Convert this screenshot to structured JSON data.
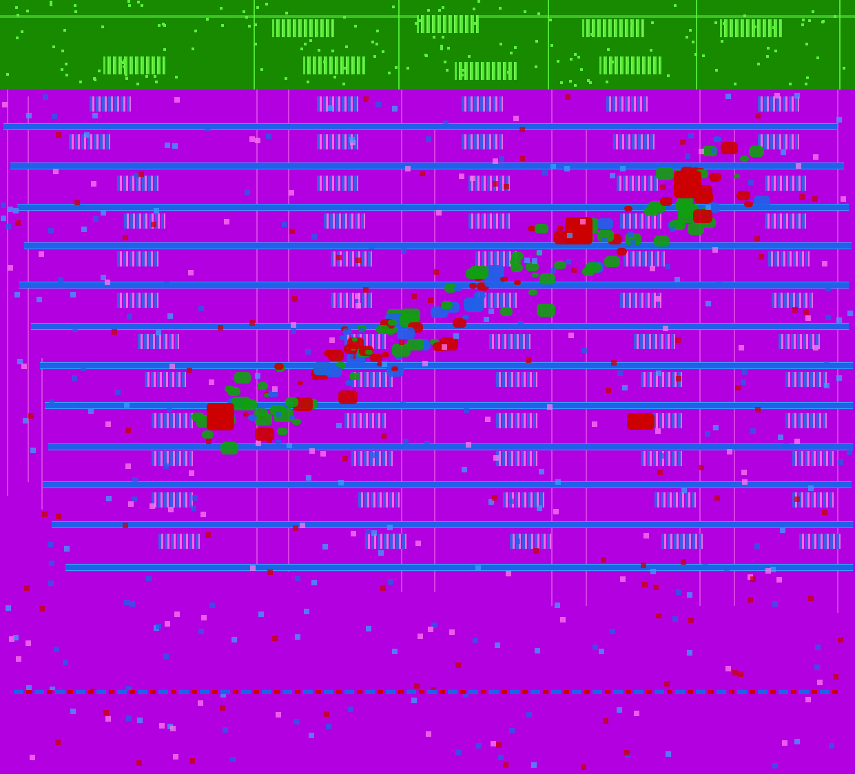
{
  "colors": {
    "background": "#b200e0",
    "header_band": "#188a00",
    "header_highlight": "#5cf23a",
    "row_line": "#1f62e8",
    "row_line_edge": "#3aa0ff",
    "column_line": "#ff7af0",
    "mark_green": "#10a010",
    "mark_red": "#cc0000",
    "mark_blue": "#1f62e8"
  }
}
